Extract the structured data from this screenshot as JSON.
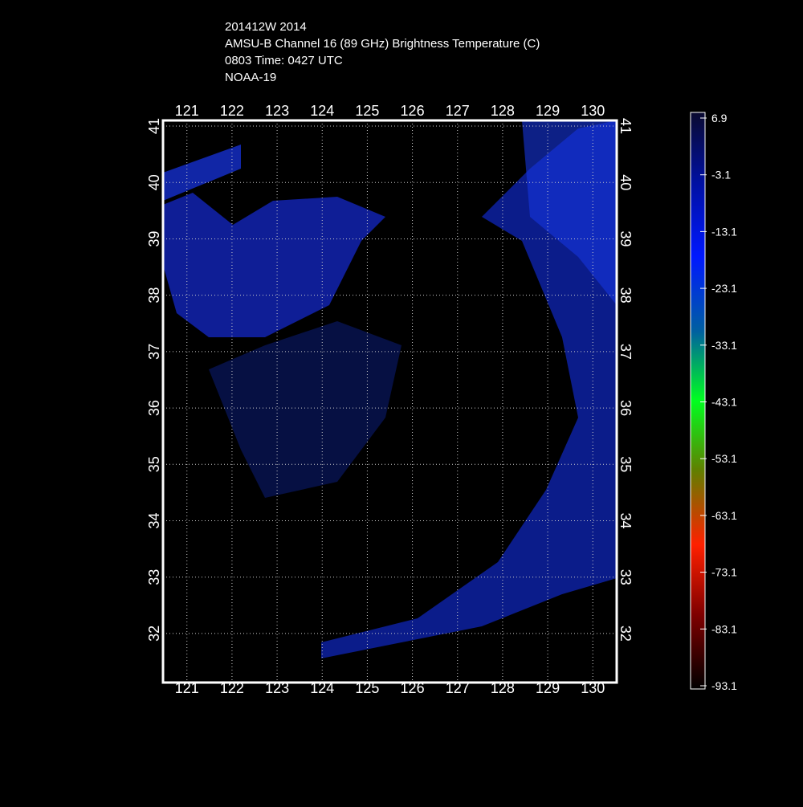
{
  "title_lines": [
    "201412W 2014",
    "AMSU-B Channel 16 (89 GHz) Brightness Temperature (C)",
    "0803 Time: 0427 UTC",
    "NOAA-19"
  ],
  "map": {
    "xlim": [
      120.47,
      130.53
    ],
    "ylim": [
      31.13,
      41.1
    ],
    "xticks": [
      121,
      122,
      123,
      124,
      125,
      126,
      127,
      128,
      129,
      130
    ],
    "yticks": [
      32,
      33,
      34,
      35,
      36,
      37,
      38,
      39,
      40,
      41
    ]
  },
  "colorbar": {
    "ticks": [
      6.9,
      -3.1,
      -13.1,
      -23.1,
      -33.1,
      -43.1,
      -53.1,
      -63.1,
      -73.1,
      -83.1,
      -93.1
    ]
  }
}
